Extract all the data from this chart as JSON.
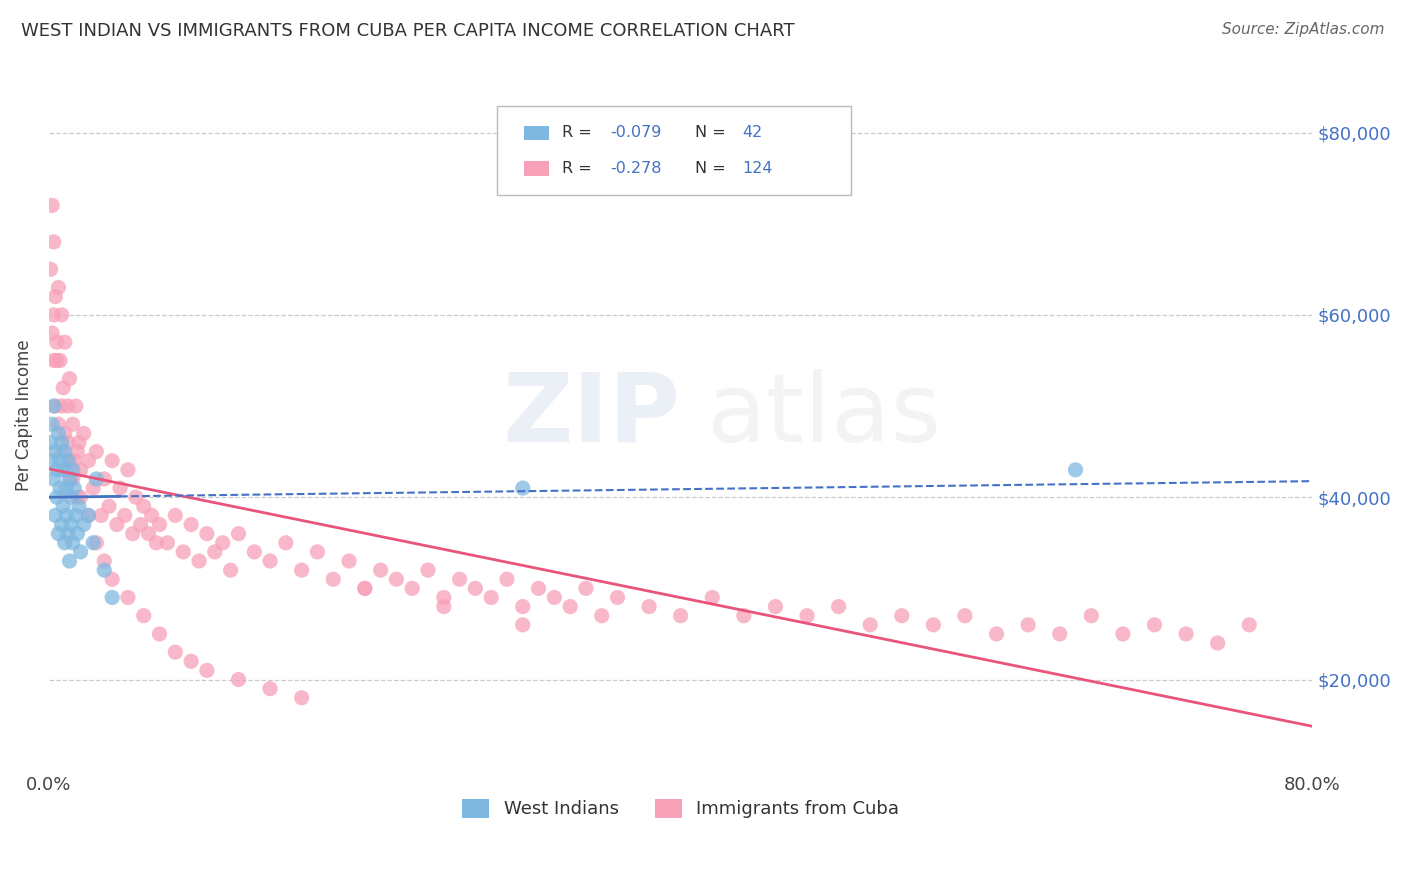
{
  "title": "WEST INDIAN VS IMMIGRANTS FROM CUBA PER CAPITA INCOME CORRELATION CHART",
  "source": "Source: ZipAtlas.com",
  "ylabel": "Per Capita Income",
  "xlim": [
    0.0,
    0.8
  ],
  "ylim": [
    10000,
    88000
  ],
  "yticks": [
    20000,
    40000,
    60000,
    80000
  ],
  "ytick_labels": [
    "$20,000",
    "$40,000",
    "$60,000",
    "$80,000"
  ],
  "legend_r1": "-0.079",
  "legend_n1": "42",
  "legend_r2": "-0.278",
  "legend_n2": "124",
  "color_blue": "#7eb8e0",
  "color_pink": "#f8a0b8",
  "west_indians_x": [
    0.001,
    0.002,
    0.002,
    0.003,
    0.003,
    0.004,
    0.004,
    0.005,
    0.005,
    0.006,
    0.006,
    0.007,
    0.007,
    0.008,
    0.008,
    0.009,
    0.009,
    0.01,
    0.01,
    0.011,
    0.011,
    0.012,
    0.012,
    0.013,
    0.013,
    0.014,
    0.014,
    0.015,
    0.015,
    0.016,
    0.017,
    0.018,
    0.019,
    0.02,
    0.022,
    0.025,
    0.028,
    0.03,
    0.035,
    0.04,
    0.3,
    0.65
  ],
  "west_indians_y": [
    46000,
    48000,
    44000,
    50000,
    42000,
    45000,
    38000,
    43000,
    40000,
    47000,
    36000,
    44000,
    41000,
    46000,
    37000,
    43000,
    39000,
    45000,
    35000,
    41000,
    38000,
    44000,
    36000,
    42000,
    33000,
    40000,
    37000,
    43000,
    35000,
    41000,
    38000,
    36000,
    39000,
    34000,
    37000,
    38000,
    35000,
    42000,
    32000,
    29000,
    41000,
    43000
  ],
  "cuba_x": [
    0.001,
    0.002,
    0.002,
    0.003,
    0.003,
    0.004,
    0.004,
    0.005,
    0.006,
    0.006,
    0.007,
    0.008,
    0.008,
    0.009,
    0.01,
    0.011,
    0.012,
    0.012,
    0.013,
    0.014,
    0.015,
    0.016,
    0.017,
    0.018,
    0.019,
    0.02,
    0.022,
    0.025,
    0.028,
    0.03,
    0.033,
    0.035,
    0.038,
    0.04,
    0.043,
    0.045,
    0.048,
    0.05,
    0.053,
    0.055,
    0.058,
    0.06,
    0.063,
    0.065,
    0.068,
    0.07,
    0.075,
    0.08,
    0.085,
    0.09,
    0.095,
    0.1,
    0.105,
    0.11,
    0.115,
    0.12,
    0.13,
    0.14,
    0.15,
    0.16,
    0.17,
    0.18,
    0.19,
    0.2,
    0.21,
    0.22,
    0.23,
    0.24,
    0.25,
    0.26,
    0.27,
    0.28,
    0.29,
    0.3,
    0.31,
    0.32,
    0.33,
    0.34,
    0.35,
    0.36,
    0.38,
    0.4,
    0.42,
    0.44,
    0.46,
    0.48,
    0.5,
    0.52,
    0.54,
    0.56,
    0.58,
    0.6,
    0.62,
    0.64,
    0.66,
    0.68,
    0.7,
    0.72,
    0.74,
    0.76,
    0.003,
    0.005,
    0.008,
    0.01,
    0.013,
    0.015,
    0.018,
    0.02,
    0.025,
    0.03,
    0.035,
    0.04,
    0.05,
    0.06,
    0.07,
    0.08,
    0.09,
    0.1,
    0.12,
    0.14,
    0.16,
    0.2,
    0.25,
    0.3
  ],
  "cuba_y": [
    65000,
    72000,
    58000,
    68000,
    55000,
    62000,
    50000,
    57000,
    63000,
    48000,
    55000,
    60000,
    45000,
    52000,
    57000,
    43000,
    50000,
    46000,
    53000,
    42000,
    48000,
    44000,
    50000,
    40000,
    46000,
    43000,
    47000,
    44000,
    41000,
    45000,
    38000,
    42000,
    39000,
    44000,
    37000,
    41000,
    38000,
    43000,
    36000,
    40000,
    37000,
    39000,
    36000,
    38000,
    35000,
    37000,
    35000,
    38000,
    34000,
    37000,
    33000,
    36000,
    34000,
    35000,
    32000,
    36000,
    34000,
    33000,
    35000,
    32000,
    34000,
    31000,
    33000,
    30000,
    32000,
    31000,
    30000,
    32000,
    29000,
    31000,
    30000,
    29000,
    31000,
    28000,
    30000,
    29000,
    28000,
    30000,
    27000,
    29000,
    28000,
    27000,
    29000,
    27000,
    28000,
    27000,
    28000,
    26000,
    27000,
    26000,
    27000,
    25000,
    26000,
    25000,
    27000,
    25000,
    26000,
    25000,
    24000,
    26000,
    60000,
    55000,
    50000,
    47000,
    44000,
    42000,
    45000,
    40000,
    38000,
    35000,
    33000,
    31000,
    29000,
    27000,
    25000,
    23000,
    22000,
    21000,
    20000,
    19000,
    18000,
    30000,
    28000,
    26000
  ]
}
